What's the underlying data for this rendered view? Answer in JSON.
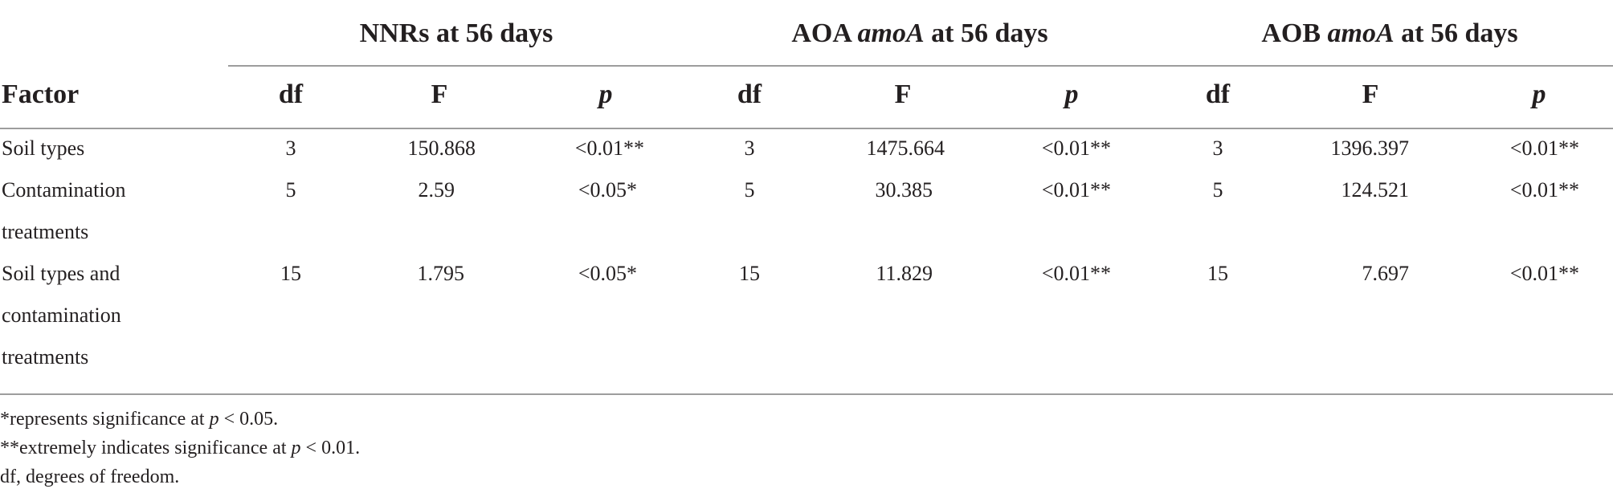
{
  "column_groups": [
    {
      "prefix": "NNRs at 56 days",
      "italic": "",
      "suffix": ""
    },
    {
      "prefix": "AOA ",
      "italic": "amoA",
      "suffix": " at 56 days"
    },
    {
      "prefix": "AOB ",
      "italic": "amoA",
      "suffix": " at 56 days"
    }
  ],
  "headers": {
    "factor": "Factor",
    "df": "df",
    "f": "F",
    "p": "p"
  },
  "rows": [
    {
      "factor_lines": [
        "Soil types"
      ],
      "values": [
        "3",
        "150.868",
        "<0.01**",
        "3",
        "1475.664",
        "<0.01**",
        "3",
        "1396.397",
        "<0.01**"
      ]
    },
    {
      "factor_lines": [
        "Contamination",
        "treatments"
      ],
      "values": [
        "5",
        "2.59",
        "<0.05*",
        "5",
        "30.385",
        "<0.01**",
        "5",
        "124.521",
        "<0.01**"
      ]
    },
    {
      "factor_lines": [
        "Soil types and",
        "contamination",
        "treatments"
      ],
      "values": [
        "15",
        "1.795",
        "<0.05*",
        "15",
        "11.829",
        "<0.01**",
        "15",
        "7.697",
        "<0.01**"
      ]
    }
  ],
  "footnotes": [
    {
      "text": "*represents significance at ",
      "p": "p",
      "tail": " < 0.05."
    },
    {
      "text": "**extremely indicates significance at ",
      "p": "p",
      "tail": " < 0.01."
    },
    {
      "text": "df, degrees of freedom.",
      "p": "",
      "tail": ""
    }
  ]
}
